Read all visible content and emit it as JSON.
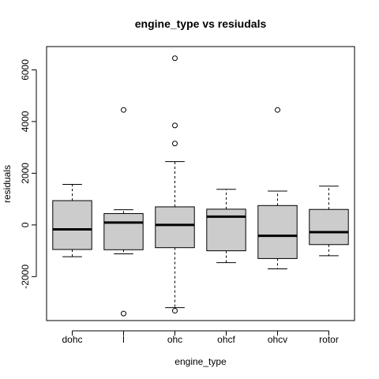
{
  "chart_data": {
    "type": "boxplot",
    "title": "engine_type  vs resiudals",
    "xlabel": "engine_type",
    "ylabel": "residuals",
    "ylim": [
      -3700,
      6900
    ],
    "yticks": [
      -2000,
      0,
      2000,
      4000,
      6000
    ],
    "yticklabels": [
      "-2000",
      "0",
      "2000",
      "4000",
      "6000"
    ],
    "box_fill": "#cccccc",
    "categories": [
      "dohc",
      "l",
      "ohc",
      "ohcf",
      "ohcv",
      "rotor"
    ],
    "boxes": [
      {
        "category": "dohc",
        "whisker_low": -1230,
        "q1": -950,
        "median": -170,
        "q3": 940,
        "whisker_high": 1570,
        "outliers": []
      },
      {
        "category": "l",
        "whisker_low": -1120,
        "q1": -960,
        "median": 90,
        "q3": 440,
        "whisker_high": 590,
        "outliers": [
          4450,
          -3430
        ]
      },
      {
        "category": "ohc",
        "whisker_low": -3200,
        "q1": -880,
        "median": 0,
        "q3": 700,
        "whisker_high": 2450,
        "outliers": [
          6450,
          3850,
          3150,
          -3320
        ]
      },
      {
        "category": "ohcf",
        "whisker_low": -1460,
        "q1": -1000,
        "median": 320,
        "q3": 610,
        "whisker_high": 1380,
        "outliers": []
      },
      {
        "category": "ohcv",
        "whisker_low": -1700,
        "q1": -1300,
        "median": -420,
        "q3": 750,
        "whisker_high": 1310,
        "outliers": [
          4450
        ]
      },
      {
        "category": "rotor",
        "whisker_low": -1190,
        "q1": -760,
        "median": -280,
        "q3": 600,
        "whisker_high": 1500,
        "outliers": []
      }
    ]
  }
}
